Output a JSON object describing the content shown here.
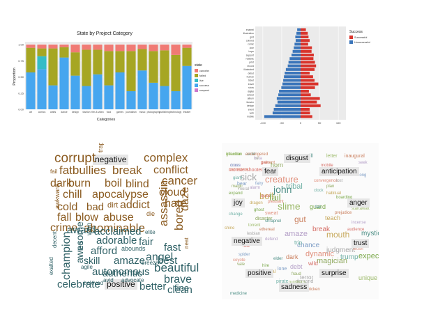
{
  "colors": {
    "canceled": "#f07a74",
    "failed": "#a6a623",
    "live": "#35bcc6",
    "successful": "#46a6ef",
    "suspended": "#cc77cc",
    "successful_bar": "#d9342c",
    "unsuccessful_bar": "#3a75ba",
    "wc_negative": "#8a5a1f",
    "wc_positive": "#2f6166",
    "panel_bg": "#ebebeb"
  },
  "chart_data": [
    {
      "type": "bar",
      "stacked": true,
      "title": "State by Project Category",
      "xlabel": "Categories",
      "ylabel": "Proportion",
      "ylim": [
        0,
        1
      ],
      "yticks": [
        "0.00",
        "0.25",
        "0.50",
        "0.75",
        "1.00"
      ],
      "categories": [
        "art",
        "comics",
        "crafts",
        "dance",
        "design",
        "fashion",
        "film & video",
        "food",
        "games",
        "journalism",
        "music",
        "photography",
        "publishing",
        "technology",
        "theater"
      ],
      "legend_title": "state",
      "legend_position": "right",
      "series": [
        {
          "name": "successful",
          "values": [
            0.57,
            0.62,
            0.37,
            0.8,
            0.52,
            0.36,
            0.54,
            0.37,
            0.57,
            0.28,
            0.6,
            0.41,
            0.36,
            0.28,
            0.67
          ]
        },
        {
          "name": "live",
          "values": [
            0.0,
            0.2,
            0.0,
            0.0,
            0.0,
            0.0,
            0.0,
            0.0,
            0.0,
            0.0,
            0.0,
            0.0,
            0.0,
            0.0,
            0.0
          ]
        },
        {
          "name": "failed",
          "values": [
            0.38,
            0.12,
            0.57,
            0.16,
            0.36,
            0.56,
            0.38,
            0.53,
            0.33,
            0.62,
            0.33,
            0.49,
            0.55,
            0.56,
            0.28
          ]
        },
        {
          "name": "canceled",
          "values": [
            0.05,
            0.06,
            0.06,
            0.04,
            0.12,
            0.08,
            0.08,
            0.1,
            0.1,
            0.1,
            0.07,
            0.1,
            0.09,
            0.16,
            0.05
          ]
        },
        {
          "name": "suspended",
          "values": [
            0,
            0,
            0,
            0,
            0,
            0,
            0,
            0,
            0,
            0,
            0,
            0,
            0,
            0,
            0
          ]
        }
      ]
    },
    {
      "type": "bar",
      "orientation": "horizontal",
      "diverging": true,
      "legend_title": "Success",
      "legend_position": "top-right",
      "xlim": [
        -120,
        120
      ],
      "xticks": [
        "-100",
        "-50",
        "0",
        "50",
        "100"
      ],
      "categories": [
        "enamel",
        "illustration",
        "grid",
        "colored",
        "comic",
        "zine",
        "hope",
        "support",
        "realistic",
        "print",
        "record",
        "illustrated",
        "debut",
        "human",
        "ticket",
        "travel",
        "show",
        "digital",
        "school",
        "album",
        "theater",
        "design",
        "event",
        "web",
        "mobile"
      ],
      "series": [
        {
          "name": "Successful",
          "values": [
            14,
            19,
            21,
            24,
            20,
            30,
            29,
            35,
            34,
            38,
            41,
            37,
            24,
            33,
            37,
            47,
            38,
            22,
            27,
            51,
            43,
            53,
            24,
            25,
            31
          ]
        },
        {
          "name": "Unsuccessful",
          "values": [
            -9,
            -11,
            -14,
            -13,
            -16,
            -18,
            -21,
            -24,
            -29,
            -32,
            -34,
            -39,
            -42,
            -44,
            -46,
            -48,
            -51,
            -57,
            -59,
            -63,
            -61,
            -67,
            -71,
            -74,
            -96
          ]
        }
      ]
    }
  ],
  "cloud1": {
    "negative_label": "negative",
    "positive_label": "positive",
    "negative_words": [
      "corrupt",
      "complex",
      "fatbullies",
      "break",
      "conflict",
      "dark",
      "burn",
      "boil",
      "blind",
      "cancer",
      "chill",
      "apocalypse",
      "cloud",
      "cold",
      "bad",
      "dirt",
      "addict",
      "hate",
      "fall",
      "blow",
      "abuse",
      "crime",
      "abominable",
      "assassin",
      "bored",
      "daze",
      "fail",
      "awkward",
      "die",
      "neat",
      "trap"
    ],
    "positive_words": [
      "award",
      "acclaimed",
      "adorable",
      "fair",
      "afford",
      "skill",
      "amaze",
      "angel",
      "abounds",
      "autonomous",
      "beautiful",
      "celebrate",
      "better",
      "fine",
      "champion",
      "awesome",
      "authentic",
      "brave",
      "clean",
      "fast",
      "best",
      "elite",
      "breeze",
      "agile",
      "beloved",
      "avid",
      "advocate",
      "exalted",
      "decent",
      "led",
      "won"
    ]
  },
  "cloud2": {
    "labels": [
      "disgust",
      "anticipation",
      "joy",
      "anger",
      "fear",
      "negative",
      "trust",
      "positive",
      "surprise",
      "sadness"
    ],
    "words": [
      "infection",
      "avoid",
      "cut",
      "prevent",
      "doom",
      "monstershooter",
      "bear",
      "creature",
      "horn",
      "sick",
      "tribal",
      "boil",
      "fail",
      "john",
      "slime",
      "gut",
      "amaze",
      "break",
      "chance",
      "dynamic",
      "magician",
      "judgment",
      "trump",
      "mouth",
      "expect",
      "mystic",
      "unique",
      "dark",
      "debt",
      "wild",
      "lone",
      "sweat",
      "disaster",
      "terror",
      "trip",
      "teach",
      "guard",
      "ill",
      "letter",
      "inaugural",
      "seek",
      "mobile",
      "long",
      "convergence",
      "plan",
      "lost",
      "clock",
      "habitual",
      "boarding",
      "fall",
      "startawait",
      "prejudice",
      "incense",
      "audience",
      "crave",
      "crush",
      "fraud",
      "demand",
      "pirate",
      "fatal",
      "hire",
      "elder",
      "nutritious",
      "stricken",
      "alarm",
      "quiet",
      "fairy",
      "pleasant",
      "magic",
      "moral",
      "giant",
      "dragon",
      "ghost",
      "shrapnel",
      "torrent",
      "ethereal",
      "defend",
      "rule",
      "spider",
      "coyote",
      "vale",
      "lesbian",
      "change",
      "shine",
      "expand",
      "medicine",
      "guardian",
      "endangered",
      "beta",
      "gain",
      "cross",
      "commerce"
    ]
  }
}
